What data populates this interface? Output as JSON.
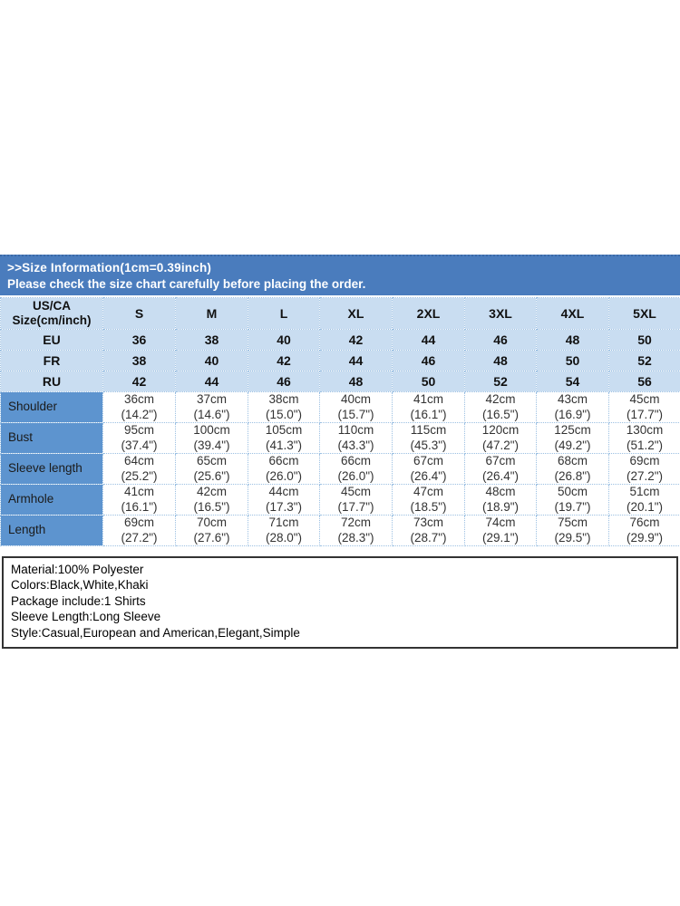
{
  "header": {
    "line1": ">>Size Information(1cm=0.39inch)",
    "line2": "Please check the size chart carefully before placing the order."
  },
  "size_chart": {
    "corner_line1": "US/CA",
    "corner_line2": "Size(cm/inch)",
    "sizes": [
      "S",
      "M",
      "L",
      "XL",
      "2XL",
      "3XL",
      "4XL",
      "5XL"
    ],
    "regions": [
      {
        "label": "EU",
        "values": [
          "36",
          "38",
          "40",
          "42",
          "44",
          "46",
          "48",
          "50"
        ]
      },
      {
        "label": "FR",
        "values": [
          "38",
          "40",
          "42",
          "44",
          "46",
          "48",
          "50",
          "52"
        ]
      },
      {
        "label": "RU",
        "values": [
          "42",
          "44",
          "46",
          "48",
          "50",
          "52",
          "54",
          "56"
        ]
      }
    ],
    "measurements": [
      {
        "label": "Shoulder",
        "cm": [
          "36cm",
          "37cm",
          "38cm",
          "40cm",
          "41cm",
          "42cm",
          "43cm",
          "45cm"
        ],
        "inch": [
          "(14.2\")",
          "(14.6\")",
          "(15.0\")",
          "(15.7\")",
          "(16.1\")",
          "(16.5\")",
          "(16.9\")",
          "(17.7\")"
        ]
      },
      {
        "label": "Bust",
        "cm": [
          "95cm",
          "100cm",
          "105cm",
          "110cm",
          "115cm",
          "120cm",
          "125cm",
          "130cm"
        ],
        "inch": [
          "(37.4\")",
          "(39.4\")",
          "(41.3\")",
          "(43.3\")",
          "(45.3\")",
          "(47.2\")",
          "(49.2\")",
          "(51.2\")"
        ]
      },
      {
        "label": "Sleeve length",
        "cm": [
          "64cm",
          "65cm",
          "66cm",
          "66cm",
          "67cm",
          "67cm",
          "68cm",
          "69cm"
        ],
        "inch": [
          "(25.2\")",
          "(25.6\")",
          "(26.0\")",
          "(26.0\")",
          "(26.4\")",
          "(26.4\")",
          "(26.8\")",
          "(27.2\")"
        ]
      },
      {
        "label": "Armhole",
        "cm": [
          "41cm",
          "42cm",
          "44cm",
          "45cm",
          "47cm",
          "48cm",
          "50cm",
          "51cm"
        ],
        "inch": [
          "(16.1\")",
          "(16.5\")",
          "(17.3\")",
          "(17.7\")",
          "(18.5\")",
          "(18.9\")",
          "(19.7\")",
          "(20.1\")"
        ]
      },
      {
        "label": "Length",
        "cm": [
          "69cm",
          "70cm",
          "71cm",
          "72cm",
          "73cm",
          "74cm",
          "75cm",
          "76cm"
        ],
        "inch": [
          "(27.2\")",
          "(27.6\")",
          "(28.0\")",
          "(28.3\")",
          "(28.7\")",
          "(29.1\")",
          "(29.5\")",
          "(29.9\")"
        ]
      }
    ]
  },
  "details": {
    "lines": [
      "Material:100% Polyester",
      "Colors:Black,White,Khaki",
      "Package include:1 Shirts",
      "Sleeve Length:Long Sleeve",
      "Style:Casual,European and American,Elegant,Simple"
    ]
  },
  "colors": {
    "band_blue": "#4a7cbd",
    "row_light_blue": "#c9ddf1",
    "measurement_label_blue": "#5d94cf",
    "grid_dotted": "#9cc0e2"
  }
}
